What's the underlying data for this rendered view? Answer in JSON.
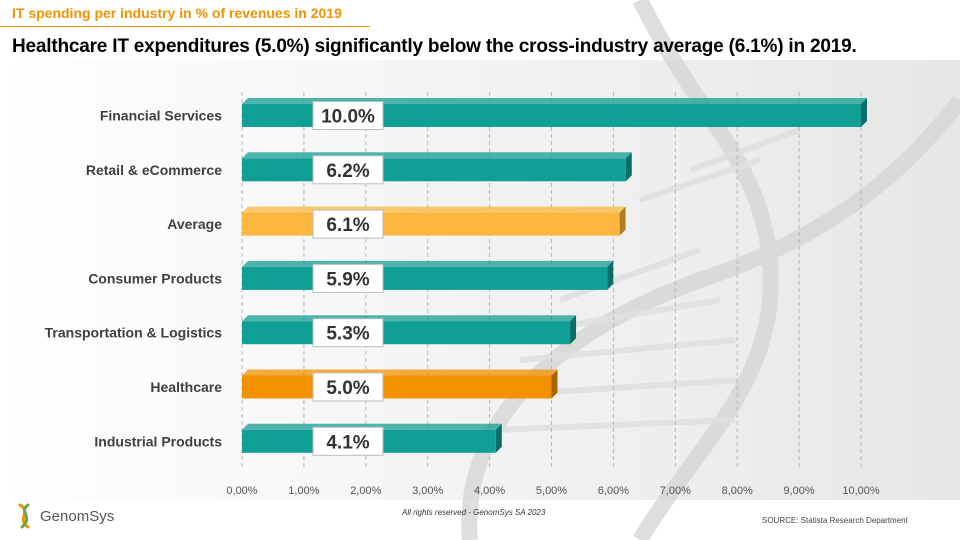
{
  "header": {
    "tag": "IT spending per industry in % of revenues in 2019",
    "headline": "Healthcare IT expenditures (5.0%) significantly below the cross-industry average (6.1%) in 2019."
  },
  "colors": {
    "accent": "#f39200",
    "bar_default": "#119e94",
    "bar_default_dark": "#0a6f68",
    "bar_average": "#fbb73d",
    "bar_average_dark": "#b07d20",
    "bar_healthcare": "#f39200",
    "bar_healthcare_dark": "#a86400"
  },
  "chart_data": {
    "type": "bar",
    "orientation": "horizontal",
    "categories": [
      "Financial Services",
      "Retail & eCommerce",
      "Average",
      "Consumer Products",
      "Transportation & Logistics",
      "Healthcare",
      "Industrial Products"
    ],
    "values": [
      10.0,
      6.2,
      6.1,
      5.9,
      5.3,
      5.0,
      4.1
    ],
    "data_labels": [
      "10.0%",
      "6.2%",
      "6.1%",
      "5.9%",
      "5.3%",
      "5.0%",
      "4.1%"
    ],
    "highlight": {
      "Average": "bar_average",
      "Healthcare": "bar_healthcare"
    },
    "xlim": [
      0,
      10
    ],
    "x_ticks": [
      0,
      1,
      2,
      3,
      4,
      5,
      6,
      7,
      8,
      9,
      10
    ],
    "x_tick_labels": [
      "0,00%",
      "1,00%",
      "2,00%",
      "3,00%",
      "4,00%",
      "5,00%",
      "6,00%",
      "7,00%",
      "8,00%",
      "9,00%",
      "10,00%"
    ],
    "grid": "vertical-dashed",
    "title": "",
    "xlabel": "",
    "ylabel": ""
  },
  "footer": {
    "logo_text": "GenomSys",
    "logo_icon": "genomsys-logo-icon",
    "rights": "All rights reserved - GenomSys SA 2023",
    "source": "SOURCE: Statista Research Department"
  }
}
